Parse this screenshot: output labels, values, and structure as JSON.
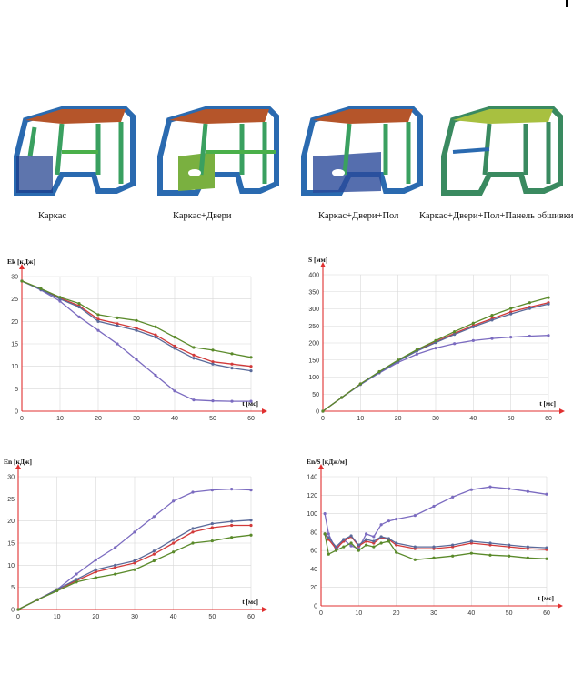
{
  "captions": [
    "Каркас",
    "Каркас+Двери",
    "Каркас+Двери+Пол",
    "Каркас+Двери+Пол+Панель обшивки"
  ],
  "colors": {
    "purple": "#7b6bc0",
    "red": "#d23a3a",
    "steel": "#5a6a9a",
    "green": "#5a8a2a",
    "axis": "#e03030"
  },
  "chart_data": [
    {
      "type": "line",
      "ylabel": "Ek [кДж]",
      "xlabel": "t [мс]",
      "xlim": [
        0,
        60
      ],
      "ylim": [
        0,
        30
      ],
      "xticks": [
        0,
        10,
        20,
        30,
        40,
        50,
        60
      ],
      "yticks": [
        0,
        5,
        10,
        15,
        20,
        25,
        30
      ],
      "x": [
        0,
        5,
        10,
        15,
        20,
        25,
        30,
        35,
        40,
        45,
        50,
        55,
        60
      ],
      "series": [
        {
          "color": "purple",
          "values": [
            29,
            27,
            24.5,
            21,
            18,
            15,
            11.5,
            8,
            4.5,
            2.5,
            2.3,
            2.2,
            2.2
          ]
        },
        {
          "color": "red",
          "values": [
            29,
            27.2,
            25.2,
            23.5,
            20.5,
            19.5,
            18.5,
            17,
            14.5,
            12.5,
            11,
            10.5,
            10
          ]
        },
        {
          "color": "steel",
          "values": [
            29,
            27.1,
            25,
            23.2,
            20,
            19,
            18,
            16.5,
            14,
            11.8,
            10.5,
            9.6,
            9
          ]
        },
        {
          "color": "green",
          "values": [
            29,
            27.3,
            25.4,
            24,
            21.5,
            20.8,
            20.2,
            18.8,
            16.5,
            14.2,
            13.6,
            12.8,
            12
          ]
        }
      ]
    },
    {
      "type": "line",
      "ylabel": "S [мм]",
      "xlabel": "t [мс]",
      "xlim": [
        0,
        60
      ],
      "ylim": [
        0,
        400
      ],
      "xticks": [
        0,
        10,
        20,
        30,
        40,
        50,
        60
      ],
      "yticks": [
        0,
        50,
        100,
        150,
        200,
        250,
        300,
        350,
        400
      ],
      "x": [
        0,
        5,
        10,
        15,
        20,
        25,
        30,
        35,
        40,
        45,
        50,
        55,
        60
      ],
      "series": [
        {
          "color": "purple",
          "values": [
            0,
            40,
            78,
            112,
            143,
            167,
            185,
            198,
            207,
            213,
            217,
            220,
            222
          ]
        },
        {
          "color": "red",
          "values": [
            0,
            40,
            80,
            115,
            148,
            178,
            203,
            228,
            251,
            271,
            291,
            305,
            318
          ]
        },
        {
          "color": "steel",
          "values": [
            0,
            40,
            79,
            114,
            147,
            176,
            201,
            225,
            247,
            267,
            285,
            301,
            314
          ]
        },
        {
          "color": "green",
          "values": [
            0,
            40,
            80,
            116,
            150,
            180,
            207,
            233,
            258,
            281,
            301,
            318,
            333
          ]
        }
      ]
    },
    {
      "type": "line",
      "ylabel": "En [кДж]",
      "xlabel": "t [мс]",
      "xlim": [
        0,
        60
      ],
      "ylim": [
        0,
        30
      ],
      "xticks": [
        0,
        10,
        20,
        30,
        40,
        50,
        60
      ],
      "yticks": [
        0,
        5,
        10,
        15,
        20,
        25,
        30
      ],
      "x": [
        0,
        5,
        10,
        15,
        20,
        25,
        30,
        35,
        40,
        45,
        50,
        55,
        60
      ],
      "series": [
        {
          "color": "purple",
          "values": [
            0,
            2.2,
            4.5,
            8,
            11.2,
            14,
            17.5,
            21,
            24.5,
            26.5,
            27,
            27.2,
            27
          ]
        },
        {
          "color": "red",
          "values": [
            0,
            2.2,
            4.5,
            6.5,
            8.5,
            9.5,
            10.5,
            12.5,
            15,
            17.5,
            18.5,
            19,
            19
          ]
        },
        {
          "color": "steel",
          "values": [
            0,
            2.2,
            4.5,
            6.8,
            9,
            10,
            11,
            13.2,
            15.8,
            18.3,
            19.4,
            19.9,
            20.2
          ]
        },
        {
          "color": "green",
          "values": [
            0,
            2.2,
            4.2,
            6.2,
            7.2,
            8,
            9,
            11,
            13,
            15,
            15.5,
            16.3,
            16.8
          ]
        }
      ]
    },
    {
      "type": "line",
      "ylabel": "En/S [кДж/м]",
      "xlabel": "t [мс]",
      "xlim": [
        0,
        60
      ],
      "ylim": [
        0,
        140
      ],
      "xticks": [
        0,
        10,
        20,
        30,
        40,
        50,
        60
      ],
      "yticks": [
        0,
        20,
        40,
        60,
        80,
        100,
        120,
        140
      ],
      "x": [
        1,
        2,
        4,
        6,
        8,
        10,
        12,
        14,
        16,
        18,
        20,
        25,
        30,
        35,
        40,
        45,
        50,
        55,
        60
      ],
      "series": [
        {
          "color": "purple",
          "values": [
            100,
            78,
            60,
            72,
            65,
            62,
            78,
            75,
            88,
            92,
            94,
            98,
            108,
            118,
            126,
            129,
            127,
            124,
            121
          ]
        },
        {
          "color": "red",
          "values": [
            78,
            72,
            62,
            70,
            75,
            65,
            70,
            68,
            74,
            72,
            66,
            62,
            62,
            64,
            68,
            66,
            64,
            62,
            61
          ]
        },
        {
          "color": "steel",
          "values": [
            78,
            74,
            64,
            72,
            76,
            66,
            72,
            70,
            75,
            73,
            68,
            64,
            64,
            66,
            70,
            68,
            66,
            64,
            63
          ]
        },
        {
          "color": "green",
          "values": [
            78,
            56,
            60,
            64,
            68,
            60,
            66,
            64,
            68,
            70,
            58,
            50,
            52,
            54,
            57,
            55,
            54,
            52,
            51
          ]
        }
      ]
    }
  ]
}
